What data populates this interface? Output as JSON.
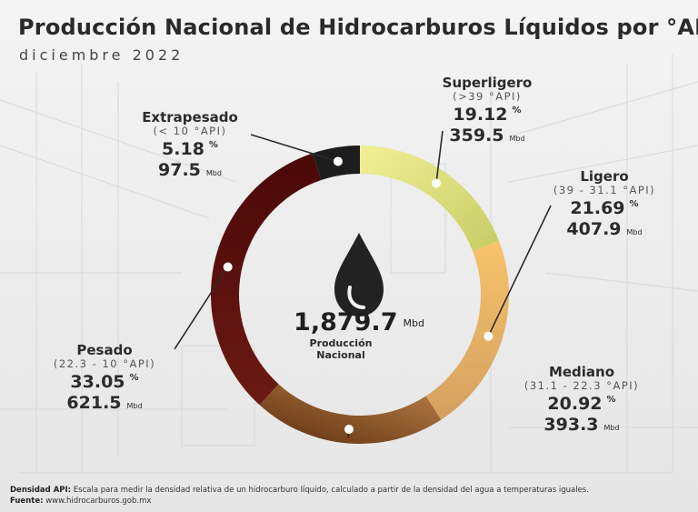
{
  "header": {
    "title": "Producción Nacional de Hidrocarburos Líquidos por °API",
    "subtitle": "diciembre 2022"
  },
  "chart_data": {
    "type": "pie",
    "variant": "donut",
    "total": {
      "value": "1,879.7",
      "unit": "Mbd",
      "label_line1": "Producción",
      "label_line2": "Nacional"
    },
    "slices": [
      {
        "name": "Superligero",
        "range": "(>39 °API)",
        "percent": 19.12,
        "percent_text": "19.12",
        "volume": "359.5",
        "color": "#f1f096",
        "color_end": "#c6cc64"
      },
      {
        "name": "Ligero",
        "range": "(39 - 31.1 °API)",
        "percent": 21.69,
        "percent_text": "21.69",
        "volume": "407.9",
        "color": "#f6c36b",
        "color_end": "#d4a060"
      },
      {
        "name": "Mediano",
        "range": "(31.1 - 22.3 °API)",
        "percent": 20.92,
        "percent_text": "20.92",
        "volume": "393.3",
        "color": "#b98046",
        "color_end": "#5e2f10"
      },
      {
        "name": "Pesado",
        "range": "(22.3 - 10 °API)",
        "percent": 33.05,
        "percent_text": "33.05",
        "volume": "621.5",
        "color": "#6b1a12",
        "color_end": "#4a0808"
      },
      {
        "name": "Extrapesado",
        "range": "(< 10 °API)",
        "percent": 5.18,
        "percent_text": "5.18",
        "volume": "97.5",
        "color": "#1d1d1d",
        "color_end": "#1d1d1d"
      }
    ],
    "percent_unit": "%",
    "volume_unit": "Mbd"
  },
  "footer": {
    "note_label": "Densidad API:",
    "note_text": "Escala para medir la densidad relativa de un hidrocarburo líquido, calculado a partir de la densidad del agua a temperaturas iguales.",
    "source_label": "Fuente:",
    "source_text": "www.hidrocarburos.gob.mx"
  }
}
